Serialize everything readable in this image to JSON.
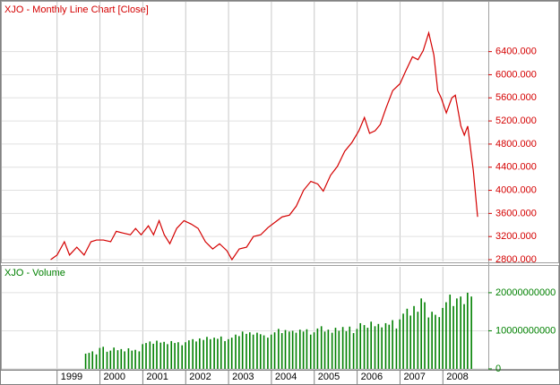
{
  "chart_data": [
    {
      "type": "line",
      "title": "XJO - Monthly Line Chart [Close]",
      "color": "#d40000",
      "x": [
        1998.85,
        1999.0,
        1999.17,
        1999.29,
        1999.46,
        1999.63,
        1999.79,
        1999.92,
        2000.08,
        2000.25,
        2000.38,
        2000.54,
        2000.71,
        2000.83,
        2000.96,
        2001.13,
        2001.25,
        2001.38,
        2001.5,
        2001.63,
        2001.79,
        2001.96,
        2002.13,
        2002.29,
        2002.46,
        2002.63,
        2002.79,
        2002.96,
        2003.08,
        2003.25,
        2003.42,
        2003.58,
        2003.75,
        2003.92,
        2004.08,
        2004.25,
        2004.42,
        2004.58,
        2004.75,
        2004.92,
        2005.08,
        2005.21,
        2005.38,
        2005.54,
        2005.71,
        2005.88,
        2006.04,
        2006.17,
        2006.29,
        2006.42,
        2006.54,
        2006.67,
        2006.83,
        2007.0,
        2007.13,
        2007.29,
        2007.42,
        2007.54,
        2007.67,
        2007.79,
        2007.88,
        2007.96,
        2008.08,
        2008.21,
        2008.29,
        2008.42,
        2008.5,
        2008.58,
        2008.71,
        2008.81
      ],
      "values": [
        2800,
        2880,
        3110,
        2880,
        3015,
        2880,
        3110,
        3140,
        3140,
        3110,
        3290,
        3260,
        3230,
        3340,
        3230,
        3385,
        3230,
        3475,
        3230,
        3075,
        3340,
        3475,
        3415,
        3340,
        3110,
        2985,
        3075,
        2955,
        2800,
        2985,
        3015,
        3200,
        3230,
        3355,
        3445,
        3540,
        3570,
        3725,
        4000,
        4155,
        4110,
        3985,
        4260,
        4415,
        4675,
        4830,
        5030,
        5260,
        4985,
        5030,
        5140,
        5415,
        5725,
        5845,
        6060,
        6310,
        6260,
        6415,
        6725,
        6340,
        5725,
        5600,
        5340,
        5600,
        5645,
        5110,
        4955,
        5110,
        4340,
        3540
      ],
      "xlim": [
        1997.71,
        2009.06
      ],
      "xticks": [
        1999,
        2000,
        2001,
        2002,
        2003,
        2004,
        2005,
        2006,
        2007,
        2008
      ],
      "ylim": [
        2769,
        7262
      ],
      "yticks": [
        {
          "value": 2800,
          "label": "2800.000"
        },
        {
          "value": 3200,
          "label": "3200.000"
        },
        {
          "value": 3600,
          "label": "3600.000"
        },
        {
          "value": 4000,
          "label": "4000.000"
        },
        {
          "value": 4400,
          "label": "4400.000"
        },
        {
          "value": 4800,
          "label": "4800.000"
        },
        {
          "value": 5200,
          "label": "5200.000"
        },
        {
          "value": 5600,
          "label": "5600.000"
        },
        {
          "value": 6000,
          "label": "6000.000"
        },
        {
          "value": 6400,
          "label": "6400.000"
        }
      ],
      "grid": true
    },
    {
      "type": "bar",
      "title": "XJO - Volume",
      "color": "#008000",
      "x": [
        1999.67,
        1999.75,
        1999.83,
        1999.92,
        2000.0,
        2000.08,
        2000.17,
        2000.25,
        2000.33,
        2000.42,
        2000.5,
        2000.58,
        2000.67,
        2000.75,
        2000.83,
        2000.92,
        2001.0,
        2001.08,
        2001.17,
        2001.25,
        2001.33,
        2001.42,
        2001.5,
        2001.58,
        2001.67,
        2001.75,
        2001.83,
        2001.92,
        2002.0,
        2002.08,
        2002.17,
        2002.25,
        2002.33,
        2002.42,
        2002.5,
        2002.58,
        2002.67,
        2002.75,
        2002.83,
        2002.92,
        2003.0,
        2003.08,
        2003.17,
        2003.25,
        2003.33,
        2003.42,
        2003.5,
        2003.58,
        2003.67,
        2003.75,
        2003.83,
        2003.92,
        2004.0,
        2004.08,
        2004.17,
        2004.25,
        2004.33,
        2004.42,
        2004.5,
        2004.58,
        2004.67,
        2004.75,
        2004.83,
        2004.92,
        2005.0,
        2005.08,
        2005.17,
        2005.25,
        2005.33,
        2005.42,
        2005.5,
        2005.58,
        2005.67,
        2005.75,
        2005.83,
        2005.92,
        2006.0,
        2006.08,
        2006.17,
        2006.25,
        2006.33,
        2006.42,
        2006.5,
        2006.58,
        2006.67,
        2006.75,
        2006.83,
        2006.92,
        2007.0,
        2007.08,
        2007.17,
        2007.25,
        2007.33,
        2007.42,
        2007.5,
        2007.58,
        2007.67,
        2007.75,
        2007.83,
        2007.92,
        2008.0,
        2008.08,
        2008.17,
        2008.25,
        2008.33,
        2008.42,
        2008.5,
        2008.58,
        2008.67
      ],
      "values": [
        4000000000.0,
        4200000000.0,
        4600000000.0,
        3800000000.0,
        5500000000.0,
        5800000000.0,
        4500000000.0,
        4800000000.0,
        5600000000.0,
        4900000000.0,
        5200000000.0,
        4600000000.0,
        5400000000.0,
        4800000000.0,
        5000000000.0,
        4600000000.0,
        6500000000.0,
        6800000000.0,
        7200000000.0,
        6600000000.0,
        7400000000.0,
        6900000000.0,
        7100000000.0,
        6500000000.0,
        7300000000.0,
        6800000000.0,
        7000000000.0,
        6200000000.0,
        7000000000.0,
        7500000000.0,
        7800000000.0,
        7200000000.0,
        8000000000.0,
        7600000000.0,
        8400000000.0,
        7800000000.0,
        8200000000.0,
        7900000000.0,
        8500000000.0,
        7300000000.0,
        7800000000.0,
        8200000000.0,
        9000000000.0,
        8600000000.0,
        9800000000.0,
        9200000000.0,
        9600000000.0,
        9000000000.0,
        9500000000.0,
        9100000000.0,
        8800000000.0,
        8200000000.0,
        9000000000.0,
        9600000000.0,
        10500000000.0,
        9400000000.0,
        10200000000.0,
        9800000000.0,
        10000000000.0,
        9500000000.0,
        10300000000.0,
        9800000000.0,
        10400000000.0,
        9000000000.0,
        9600000000.0,
        10600000000.0,
        11200000000.0,
        9800000000.0,
        10300000000.0,
        9500000000.0,
        10800000000.0,
        10000000000.0,
        11000000000.0,
        9900000000.0,
        11100000000.0,
        9400000000.0,
        10500000000.0,
        12000000000.0,
        11500000000.0,
        10800000000.0,
        12400000000.0,
        11200000000.0,
        11800000000.0,
        10900000000.0,
        12000000000.0,
        11600000000.0,
        12800000000.0,
        10600000000.0,
        13000000000.0,
        14500000000.0,
        15800000000.0,
        14000000000.0,
        16500000000.0,
        15000000000.0,
        18500000000.0,
        17500000000.0,
        13500000000.0,
        15000000000.0,
        14200000000.0,
        13600000000.0,
        16000000000.0,
        17500000000.0,
        19500000000.0,
        16500000000.0,
        18500000000.0,
        19000000000.0,
        17000000000.0,
        20000000000.0,
        19000000000.0
      ],
      "xlim": [
        1997.71,
        2009.06
      ],
      "xticks": [
        1999,
        2000,
        2001,
        2002,
        2003,
        2004,
        2005,
        2006,
        2007,
        2008
      ],
      "ylim": [
        0,
        26800000000.0
      ],
      "yticks": [
        0,
        10000000000,
        20000000000
      ],
      "grid": true
    }
  ]
}
